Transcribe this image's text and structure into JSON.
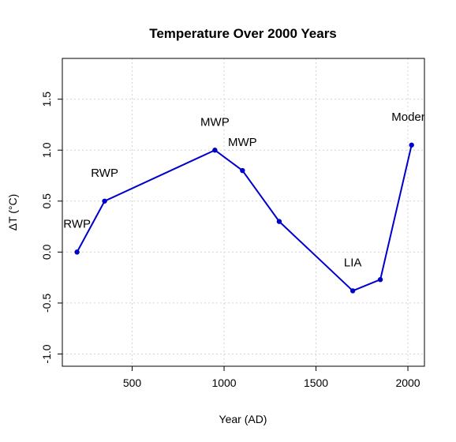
{
  "chart_data": {
    "type": "line",
    "title": "Temperature Over 2000 Years",
    "xlabel": "Year (AD)",
    "ylabel": "ΔT (°C)",
    "xlim": [
      120,
      2090
    ],
    "ylim": [
      -1.12,
      1.9
    ],
    "x_ticks": [
      500,
      1000,
      1500,
      2000
    ],
    "y_ticks": [
      -1.0,
      -0.5,
      0.0,
      0.5,
      1.0,
      1.5
    ],
    "x_tick_labels": [
      "500",
      "1000",
      "1500",
      "2000"
    ],
    "y_tick_labels": [
      "-1.0",
      "-0.5",
      "0.0",
      "0.5",
      "1.0",
      "1.5"
    ],
    "grid": true,
    "series": [
      {
        "color": "#0000cd",
        "x": [
          200,
          350,
          950,
          1100,
          1300,
          1700,
          1850,
          2020
        ],
        "y": [
          0.0,
          0.5,
          1.0,
          0.8,
          0.3,
          -0.38,
          -0.27,
          1.05
        ]
      }
    ],
    "annotations": [
      {
        "text": "RWP",
        "x": 200,
        "y": 0.27
      },
      {
        "text": "RWP",
        "x": 350,
        "y": 0.77
      },
      {
        "text": "MWP",
        "x": 950,
        "y": 1.27
      },
      {
        "text": "MWP",
        "x": 1100,
        "y": 1.07
      },
      {
        "text": "LIA",
        "x": 1700,
        "y": -0.11
      },
      {
        "text": "Modern",
        "x": 2020,
        "y": 1.32
      }
    ]
  }
}
